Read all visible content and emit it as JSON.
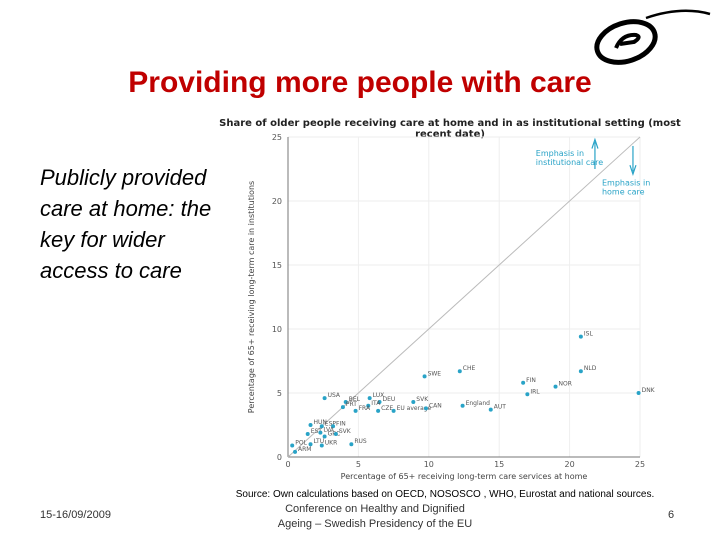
{
  "slide": {
    "title": "Providing more people with care",
    "side_text": "Publicly provided care at home: the key for wider access to care",
    "source": "Source: Own calculations based on OECD, NOSOSCO , WHO, Eurostat and national sources.",
    "footer_date": "15-16/09/2009",
    "footer_line1": "Conference on Healthy and Dignified",
    "footer_line2": "Ageing – Swedish Presidency of the EU",
    "page_number": "6",
    "logo_icon": "european-centre-logo-icon"
  },
  "colors": {
    "title": "#c00000",
    "points": "#29a3c7",
    "annotation": "#29a3c7",
    "diagonal": "#bbbbbb"
  },
  "chart_data": {
    "type": "scatter",
    "title": "Share of older people receiving care at home and in as institutional setting (most recent date)",
    "xlabel": "Percentage of 65+ receiving long-term care services at home",
    "ylabel": "Percentage of 65+ receiving long-term care in institutions",
    "xlim": [
      0,
      25
    ],
    "ylim": [
      0,
      25
    ],
    "xticks": [
      "0",
      "5",
      "10",
      "15",
      "20",
      "25"
    ],
    "yticks": [
      "0",
      "5",
      "10",
      "15",
      "20",
      "25"
    ],
    "diagonal": true,
    "annotations": [
      {
        "text_lines": [
          "Emphasis in",
          "institutional care"
        ],
        "arrow": "up"
      },
      {
        "text_lines": [
          "Emphasis in",
          "home care"
        ],
        "arrow": "down"
      }
    ],
    "points": [
      {
        "label": "ISL",
        "x": 20.8,
        "y": 9.4
      },
      {
        "label": "NLD",
        "x": 20.8,
        "y": 6.7
      },
      {
        "label": "CHE",
        "x": 12.2,
        "y": 6.7
      },
      {
        "label": "SWE",
        "x": 9.7,
        "y": 6.3
      },
      {
        "label": "FIN",
        "x": 16.7,
        "y": 5.8
      },
      {
        "label": "NOR",
        "x": 19.0,
        "y": 5.5
      },
      {
        "label": "IRL",
        "x": 17.0,
        "y": 4.9
      },
      {
        "label": "DNK",
        "x": 24.9,
        "y": 5.0
      },
      {
        "label": "USA",
        "x": 2.6,
        "y": 4.6
      },
      {
        "label": "LUX",
        "x": 5.8,
        "y": 4.6
      },
      {
        "label": "BEL",
        "x": 4.1,
        "y": 4.3
      },
      {
        "label": "DEU",
        "x": 6.5,
        "y": 4.3
      },
      {
        "label": "SVK",
        "x": 8.9,
        "y": 4.3
      },
      {
        "label": "PRT",
        "x": 3.9,
        "y": 3.9
      },
      {
        "label": "ITA",
        "x": 5.7,
        "y": 4.0
      },
      {
        "label": "FRA",
        "x": 4.8,
        "y": 3.6
      },
      {
        "label": "CZE",
        "x": 6.4,
        "y": 3.6
      },
      {
        "label": "EU average",
        "x": 7.5,
        "y": 3.6
      },
      {
        "label": "CAN",
        "x": 9.8,
        "y": 3.8
      },
      {
        "label": "England",
        "x": 12.4,
        "y": 4.0
      },
      {
        "label": "AUT",
        "x": 14.4,
        "y": 3.7
      },
      {
        "label": "HUN",
        "x": 1.6,
        "y": 2.5
      },
      {
        "label": "ESP",
        "x": 2.4,
        "y": 2.4
      },
      {
        "label": "FIN",
        "x": 3.2,
        "y": 2.4
      },
      {
        "label": "EST",
        "x": 1.4,
        "y": 1.8
      },
      {
        "label": "LVA",
        "x": 2.3,
        "y": 1.9
      },
      {
        "label": "GRC",
        "x": 2.6,
        "y": 1.6
      },
      {
        "label": "SVK",
        "x": 3.4,
        "y": 1.8
      },
      {
        "label": "LTU",
        "x": 1.6,
        "y": 1.0
      },
      {
        "label": "UKR",
        "x": 2.4,
        "y": 0.9
      },
      {
        "label": "POL",
        "x": 0.3,
        "y": 0.9
      },
      {
        "label": "RUS",
        "x": 4.5,
        "y": 1.0
      },
      {
        "label": "ARM",
        "x": 0.5,
        "y": 0.4
      }
    ]
  }
}
